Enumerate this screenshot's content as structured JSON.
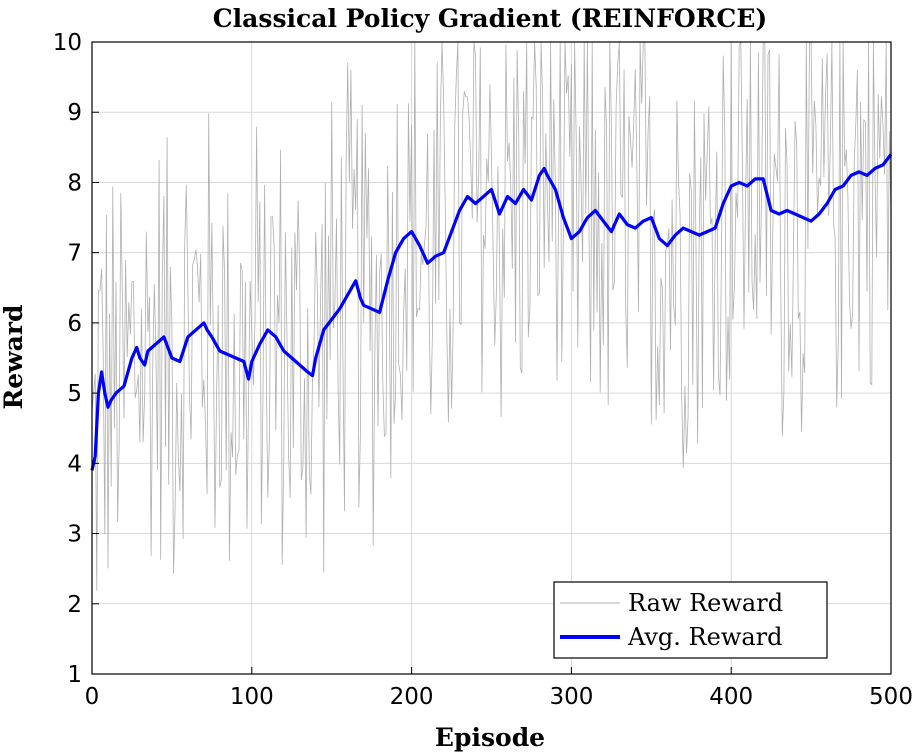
{
  "chart_data": {
    "type": "line",
    "title": "Classical Policy Gradient (REINFORCE)",
    "xlabel": "Episode",
    "ylabel": "Reward",
    "xlim": [
      0,
      500
    ],
    "ylim": [
      1,
      10
    ],
    "xticks": [
      0,
      100,
      200,
      300,
      400,
      500
    ],
    "yticks": [
      1,
      2,
      3,
      4,
      5,
      6,
      7,
      8,
      9,
      10
    ],
    "grid": true,
    "legend_position": "bottom-right",
    "raw_reward": {
      "name": "Raw Reward",
      "color": "#b0b0b0",
      "y_range_approx": [
        1,
        10
      ]
    },
    "series": [
      {
        "name": "Avg. Reward",
        "color": "#0000ff",
        "x": [
          0,
          2,
          4,
          6,
          8,
          10,
          12,
          15,
          20,
          25,
          28,
          30,
          33,
          35,
          40,
          45,
          50,
          55,
          60,
          65,
          70,
          72,
          75,
          80,
          85,
          90,
          95,
          98,
          100,
          105,
          110,
          115,
          120,
          125,
          130,
          135,
          138,
          140,
          145,
          150,
          155,
          160,
          165,
          168,
          170,
          175,
          180,
          185,
          190,
          195,
          200,
          205,
          210,
          215,
          220,
          225,
          230,
          235,
          240,
          245,
          250,
          255,
          260,
          265,
          270,
          275,
          280,
          283,
          285,
          290,
          295,
          300,
          305,
          310,
          315,
          320,
          325,
          330,
          335,
          340,
          345,
          350,
          355,
          360,
          365,
          370,
          375,
          380,
          385,
          390,
          395,
          400,
          405,
          410,
          415,
          420,
          425,
          430,
          435,
          440,
          445,
          450,
          455,
          460,
          465,
          470,
          475,
          480,
          485,
          490,
          495,
          500
        ],
        "y": [
          3.9,
          4.1,
          5.0,
          5.3,
          5.0,
          4.8,
          4.9,
          5.0,
          5.1,
          5.5,
          5.65,
          5.5,
          5.4,
          5.6,
          5.7,
          5.8,
          5.5,
          5.45,
          5.8,
          5.9,
          6.0,
          5.9,
          5.8,
          5.6,
          5.55,
          5.5,
          5.45,
          5.2,
          5.45,
          5.7,
          5.9,
          5.8,
          5.6,
          5.5,
          5.4,
          5.3,
          5.25,
          5.5,
          5.9,
          6.05,
          6.2,
          6.4,
          6.6,
          6.35,
          6.25,
          6.2,
          6.15,
          6.6,
          7.0,
          7.2,
          7.3,
          7.1,
          6.85,
          6.95,
          7.0,
          7.3,
          7.6,
          7.8,
          7.7,
          7.8,
          7.9,
          7.55,
          7.8,
          7.7,
          7.9,
          7.75,
          8.1,
          8.2,
          8.1,
          7.9,
          7.5,
          7.2,
          7.3,
          7.5,
          7.6,
          7.45,
          7.3,
          7.55,
          7.4,
          7.35,
          7.45,
          7.5,
          7.2,
          7.1,
          7.25,
          7.35,
          7.3,
          7.25,
          7.3,
          7.35,
          7.7,
          7.95,
          8.0,
          7.95,
          8.05,
          8.05,
          7.6,
          7.55,
          7.6,
          7.55,
          7.5,
          7.45,
          7.55,
          7.7,
          7.9,
          7.95,
          8.1,
          8.15,
          8.1,
          8.2,
          8.25,
          8.4
        ]
      }
    ]
  }
}
